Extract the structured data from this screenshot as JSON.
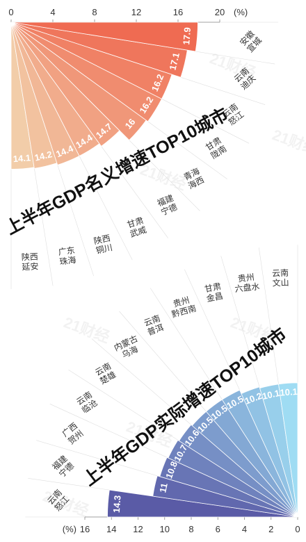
{
  "watermark": "21财经",
  "chart_data": [
    {
      "type": "bar",
      "layout": "radial",
      "title": "上半年GDP名义增速TOP10城市",
      "unit": "(%)",
      "ticks": [
        "0",
        "4",
        "8",
        "12",
        "16",
        "20"
      ],
      "xlim": [
        0,
        20
      ],
      "categories": [
        {
          "line1": "陕西",
          "line2": "延安",
          "value": 14.1,
          "label": "14.1"
        },
        {
          "line1": "广东",
          "line2": "珠海",
          "value": 14.2,
          "label": "14.2"
        },
        {
          "line1": "陕西",
          "line2": "铜川",
          "value": 14.4,
          "label": "14.4"
        },
        {
          "line1": "甘肃",
          "line2": "武威",
          "value": 14.4,
          "label": "14.4"
        },
        {
          "line1": "福建",
          "line2": "宁德",
          "value": 14.7,
          "label": "14.7"
        },
        {
          "line1": "青海",
          "line2": "海西",
          "value": 16,
          "label": "16"
        },
        {
          "line1": "甘肃",
          "line2": "陇南",
          "value": 16.2,
          "label": "16.2"
        },
        {
          "line1": "云南",
          "line2": "怒江",
          "value": 16.2,
          "label": "16.2"
        },
        {
          "line1": "云南",
          "line2": "迪庆",
          "value": 17.1,
          "label": "17.1"
        },
        {
          "line1": "安徽",
          "line2": "宣城",
          "value": 17.9,
          "label": "17.9"
        }
      ],
      "colors": [
        "#f2cda9",
        "#ef6b52"
      ]
    },
    {
      "type": "bar",
      "layout": "radial",
      "title": "上半年GDP实际增速TOP10城市",
      "unit": "(%)",
      "ticks": [
        "16",
        "14",
        "12",
        "10",
        "8",
        "6",
        "4",
        "2",
        "0"
      ],
      "xlim": [
        0,
        16
      ],
      "categories": [
        {
          "line1": "云南",
          "line2": "怒江",
          "value": 14.3,
          "label": "14.3"
        },
        {
          "line1": "福建",
          "line2": "宁德",
          "value": 11,
          "label": "11"
        },
        {
          "line1": "广西",
          "line2": "贺州",
          "value": 10.8,
          "label": "10.8"
        },
        {
          "line1": "云南",
          "line2": "临沧",
          "value": 10.7,
          "label": "10.7"
        },
        {
          "line1": "云南",
          "line2": "楚雄",
          "value": 10.6,
          "label": "10.6"
        },
        {
          "line1": "内蒙古",
          "line2": "乌海",
          "value": 10.5,
          "label": "10.5"
        },
        {
          "line1": "云南",
          "line2": "普洱",
          "value": 10.5,
          "label": "10.5"
        },
        {
          "line1": "贵州",
          "line2": "黔西南",
          "value": 10.5,
          "label": "10.5"
        },
        {
          "line1": "甘肃",
          "line2": "金昌",
          "value": 10.2,
          "label": "10.2"
        },
        {
          "line1": "贵州",
          "line2": "六盘水",
          "value": 10.1,
          "label": "10.1"
        },
        {
          "line1": "云南",
          "line2": "文山",
          "value": 10.1,
          "label": "10.1"
        }
      ],
      "colors": [
        "#5a5ba6",
        "#9fdcf3"
      ]
    }
  ]
}
